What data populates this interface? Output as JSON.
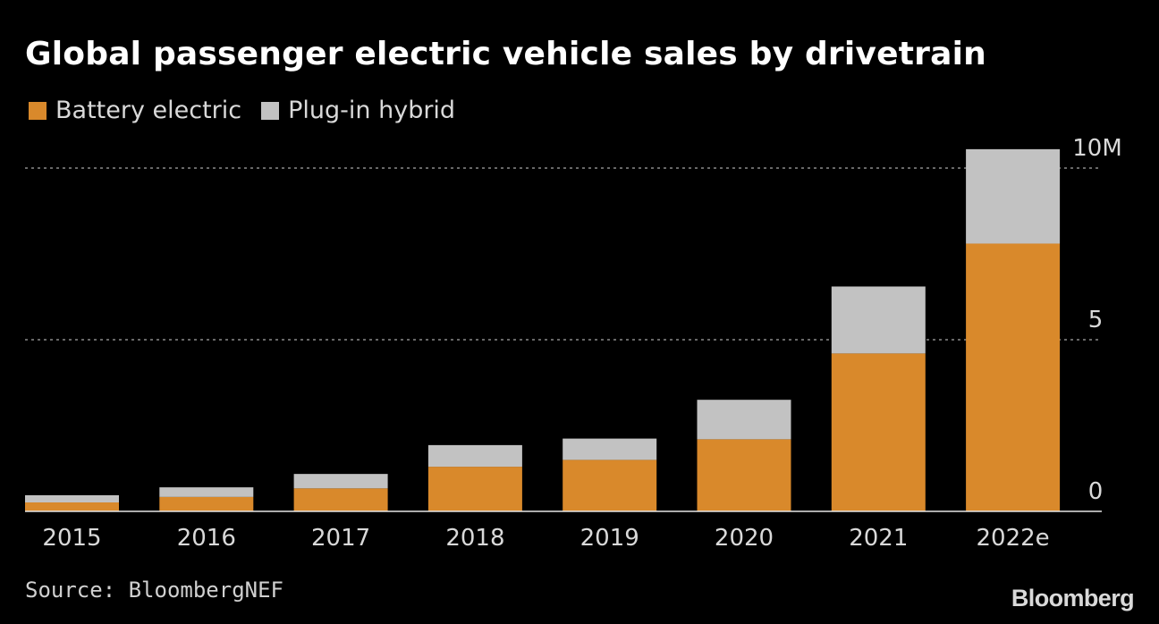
{
  "header": {
    "title": "Global passenger electric vehicle sales by drivetrain"
  },
  "legend": [
    {
      "label": "Battery electric",
      "color": "#d9892b"
    },
    {
      "label": "Plug-in hybrid",
      "color": "#c2c2c2"
    }
  ],
  "footer": {
    "source": "Source: BloombergNEF",
    "logo": "Bloomberg"
  },
  "chart_data": {
    "type": "bar",
    "stacked": true,
    "categories": [
      "2015",
      "2016",
      "2017",
      "2018",
      "2019",
      "2020",
      "2021",
      "2022e"
    ],
    "series": [
      {
        "name": "Battery electric",
        "color": "#d9892b",
        "values": [
          0.26,
          0.42,
          0.67,
          1.3,
          1.5,
          2.1,
          4.6,
          7.8
        ]
      },
      {
        "name": "Plug-in hybrid",
        "color": "#c2c2c2",
        "values": [
          0.21,
          0.28,
          0.42,
          0.63,
          0.62,
          1.15,
          1.95,
          2.75
        ]
      }
    ],
    "ylim": [
      0,
      10.5
    ],
    "yticks": [
      {
        "value": 0,
        "label": "0"
      },
      {
        "value": 5,
        "label": "5"
      },
      {
        "value": 10,
        "label": "10M"
      }
    ],
    "grid": true,
    "axis_position": "right"
  }
}
